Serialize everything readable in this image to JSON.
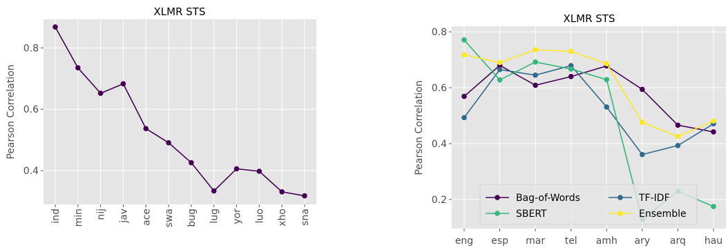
{
  "chart_data": [
    {
      "type": "line",
      "title": "XLMR STS",
      "xlabel": "",
      "ylabel": "Pearson Correlation",
      "categories": [
        "ind",
        "min",
        "nij",
        "jav",
        "ace",
        "swa",
        "bug",
        "lug",
        "yor",
        "luo",
        "xho",
        "sna"
      ],
      "series": [
        {
          "color": "#440154",
          "values": [
            0.868,
            0.735,
            0.652,
            0.683,
            0.537,
            0.491,
            0.426,
            0.334,
            0.406,
            0.398,
            0.331,
            0.318
          ]
        }
      ],
      "ylim": [
        0.29,
        0.893
      ],
      "yticks": [
        0.4,
        0.6,
        0.8
      ],
      "ytick_labels": [
        "0.4",
        "0.6",
        "0.8"
      ],
      "grid": true
    },
    {
      "type": "line",
      "title": "XLMR STS",
      "xlabel": "",
      "ylabel": "Pearson Correlation",
      "categories": [
        "eng",
        "esp",
        "mar",
        "tel",
        "amh",
        "ary",
        "arq",
        "hau"
      ],
      "series": [
        {
          "name": "Bag-of-Words",
          "color": "#440154",
          "values": [
            0.569,
            0.68,
            0.609,
            0.64,
            0.678,
            0.594,
            0.466,
            0.442
          ]
        },
        {
          "name": "TF-IDF",
          "color": "#31688e",
          "values": [
            0.493,
            0.665,
            0.645,
            0.679,
            0.531,
            0.361,
            0.393,
            0.471
          ]
        },
        {
          "name": "SBERT",
          "color": "#35b779",
          "values": [
            0.771,
            0.628,
            0.692,
            0.667,
            0.629,
            0.129,
            0.23,
            0.175
          ]
        },
        {
          "name": "Ensemble",
          "color": "#fde725",
          "values": [
            0.718,
            0.69,
            0.736,
            0.73,
            0.686,
            0.476,
            0.426,
            0.481
          ]
        }
      ],
      "ylim": [
        0.096,
        0.82
      ],
      "yticks": [
        0.2,
        0.4,
        0.6,
        0.8
      ],
      "ytick_labels": [
        "0.2",
        "0.4",
        "0.6",
        "0.8"
      ],
      "legend_position": "lower-center",
      "grid": true
    }
  ]
}
